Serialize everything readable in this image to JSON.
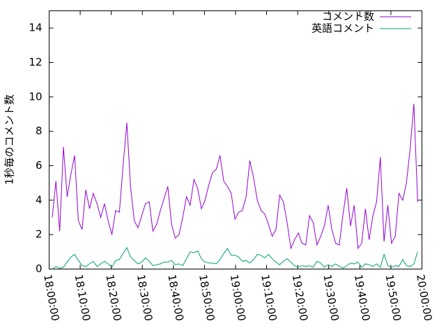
{
  "chart_data": {
    "type": "line",
    "ylabel": "1秒毎のコメント数",
    "xlim": [
      "18:00:00",
      "20:00:00"
    ],
    "xticks": [
      "18:00:00",
      "18:10:00",
      "18:20:00",
      "18:30:00",
      "18:40:00",
      "18:50:00",
      "19:00:00",
      "19:10:00",
      "19:20:00",
      "19:30:00",
      "19:40:00",
      "19:50:00",
      "20:00:00"
    ],
    "ylim": [
      0,
      15
    ],
    "yticks": [
      0,
      2,
      4,
      6,
      8,
      10,
      12,
      14
    ],
    "grid": false,
    "legend": "top-right",
    "x": [
      "18:01:00",
      "18:02:12",
      "18:03:24",
      "18:04:36",
      "18:05:48",
      "18:07:00",
      "18:08:12",
      "18:09:24",
      "18:10:36",
      "18:11:48",
      "18:13:00",
      "18:14:12",
      "18:15:24",
      "18:16:36",
      "18:17:48",
      "18:19:00",
      "18:20:12",
      "18:21:24",
      "18:22:36",
      "18:23:48",
      "18:25:00",
      "18:26:12",
      "18:27:24",
      "18:28:36",
      "18:29:48",
      "18:31:00",
      "18:32:12",
      "18:33:24",
      "18:34:36",
      "18:35:48",
      "18:37:00",
      "18:38:12",
      "18:39:24",
      "18:40:36",
      "18:41:48",
      "18:43:00",
      "18:44:12",
      "18:45:24",
      "18:46:36",
      "18:47:48",
      "18:49:00",
      "18:50:12",
      "18:51:24",
      "18:52:36",
      "18:53:48",
      "18:55:00",
      "18:56:12",
      "18:57:24",
      "18:58:36",
      "18:59:48",
      "19:01:00",
      "19:02:12",
      "19:03:24",
      "19:04:36",
      "19:05:48",
      "19:07:00",
      "19:08:12",
      "19:09:24",
      "19:10:36",
      "19:11:48",
      "19:13:00",
      "19:14:12",
      "19:15:24",
      "19:16:36",
      "19:17:48",
      "19:19:00",
      "19:20:12",
      "19:21:24",
      "19:22:36",
      "19:23:48",
      "19:25:00",
      "19:26:12",
      "19:27:24",
      "19:28:36",
      "19:29:48",
      "19:31:00",
      "19:32:12",
      "19:33:24",
      "19:34:36",
      "19:35:48",
      "19:37:00",
      "19:38:12",
      "19:39:24",
      "19:40:36",
      "19:41:48",
      "19:43:00",
      "19:44:12",
      "19:45:24",
      "19:46:36",
      "19:47:48",
      "19:49:00",
      "19:50:12",
      "19:51:24",
      "19:52:36",
      "19:53:48",
      "19:55:00",
      "19:56:12",
      "19:57:24",
      "19:58:36"
    ],
    "series": [
      {
        "name": "コメント数",
        "color": "#9400d3",
        "values": [
          3.0,
          5.1,
          2.2,
          7.1,
          4.2,
          5.5,
          6.6,
          2.8,
          2.3,
          4.6,
          3.5,
          4.4,
          3.8,
          3.0,
          3.8,
          2.8,
          2.0,
          3.4,
          3.3,
          6.0,
          8.5,
          4.8,
          2.8,
          2.4,
          3.1,
          3.8,
          3.9,
          2.2,
          2.6,
          3.4,
          4.1,
          4.8,
          2.6,
          1.8,
          2.0,
          3.0,
          4.2,
          3.7,
          5.2,
          4.7,
          3.5,
          4.0,
          4.9,
          5.6,
          5.8,
          6.6,
          5.1,
          4.8,
          4.4,
          2.9,
          3.3,
          3.4,
          4.2,
          6.3,
          5.3,
          4.0,
          3.4,
          3.2,
          2.6,
          1.9,
          2.3,
          4.3,
          3.9,
          2.7,
          1.2,
          1.7,
          2.1,
          1.5,
          1.4,
          3.1,
          2.7,
          1.4,
          1.9,
          2.5,
          3.7,
          2.3,
          1.5,
          1.4,
          3.2,
          4.7,
          2.5,
          3.7,
          1.2,
          1.5,
          3.5,
          1.7,
          3.1,
          3.9,
          6.5,
          1.6,
          3.7,
          1.5,
          1.9,
          4.4,
          4.0,
          5.0,
          7.0,
          9.6,
          3.9
        ]
      },
      {
        "name": "英語コメント",
        "color": "#009e73",
        "values": [
          0.0,
          0.15,
          0.05,
          0.1,
          0.4,
          0.7,
          0.85,
          0.5,
          0.2,
          0.15,
          0.3,
          0.45,
          0.15,
          0.3,
          0.45,
          0.3,
          0.1,
          0.5,
          0.55,
          0.9,
          1.25,
          0.7,
          0.5,
          0.3,
          0.4,
          0.65,
          0.45,
          0.2,
          0.25,
          0.3,
          0.4,
          0.4,
          0.5,
          0.25,
          0.3,
          0.2,
          0.6,
          1.0,
          0.95,
          1.05,
          0.6,
          0.4,
          0.35,
          0.35,
          0.3,
          0.55,
          0.9,
          1.2,
          0.8,
          0.8,
          0.7,
          0.45,
          0.5,
          0.35,
          0.55,
          0.85,
          0.8,
          0.65,
          0.85,
          0.6,
          0.4,
          0.25,
          0.45,
          0.6,
          0.4,
          0.2,
          0.1,
          0.2,
          0.15,
          0.2,
          0.1,
          0.45,
          0.35,
          0.1,
          0.25,
          0.15,
          0.3,
          0.15,
          0.05,
          0.2,
          0.35,
          0.3,
          0.4,
          0.1,
          0.3,
          0.25,
          0.15,
          0.3,
          0.1,
          0.85,
          0.2,
          0.1,
          0.2,
          0.15,
          0.55,
          0.2,
          0.15,
          0.3,
          1.0
        ]
      }
    ]
  }
}
